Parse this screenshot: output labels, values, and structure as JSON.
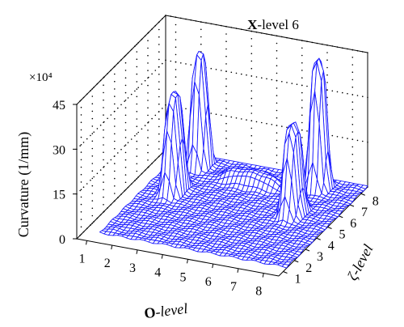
{
  "chart_data": {
    "type": "surface",
    "title": {
      "bold": "X",
      "rest": "-level 6"
    },
    "zlabel": "Curvature (1/mm)",
    "zscale_label": "×10⁴",
    "xlabel": {
      "bold": "O",
      "rest": "-level"
    },
    "ylabel": "ζ-level",
    "xticks": [
      "1",
      "2",
      "3",
      "4",
      "5",
      "6",
      "7",
      "8"
    ],
    "yticks": [
      "1",
      "2",
      "3",
      "4",
      "5",
      "6",
      "7",
      "8"
    ],
    "zticks": [
      "0",
      "15",
      "30",
      "45"
    ],
    "xlim": [
      0.6,
      8.6
    ],
    "ylim": [
      0.6,
      8.6
    ],
    "zlim": [
      0,
      45
    ],
    "grid": true,
    "surface_color": "#1a1aff",
    "peaks": [
      {
        "name": "front-left",
        "x": 2.3,
        "y": 5.5,
        "z": 33,
        "sx": 0.35,
        "sy": 0.7
      },
      {
        "name": "back-left",
        "x": 2.3,
        "y": 7.8,
        "z": 38,
        "sx": 0.35,
        "sy": 0.5
      },
      {
        "name": "front-right",
        "x": 7.0,
        "y": 5.5,
        "z": 30,
        "sx": 0.35,
        "sy": 0.7
      },
      {
        "name": "back-right",
        "x": 7.0,
        "y": 7.8,
        "z": 43,
        "sx": 0.35,
        "sy": 0.5
      },
      {
        "name": "ridge",
        "x": 4.6,
        "y": 7.2,
        "z": 4,
        "sx": 1.2,
        "sy": 0.5
      }
    ]
  }
}
